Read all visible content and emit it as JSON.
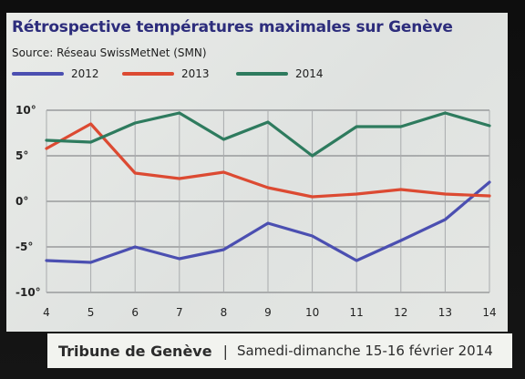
{
  "chart_data": {
    "type": "line",
    "title": "Rétrospective températures maximales sur Genève",
    "subtitle": "Source: Réseau SwissMetNet (SMN)",
    "x": [
      4,
      5,
      6,
      7,
      8,
      9,
      10,
      11,
      12,
      13,
      14
    ],
    "x_tick_labels": [
      "4",
      "5",
      "6",
      "7",
      "8",
      "9",
      "10",
      "11",
      "12",
      "13",
      "14"
    ],
    "series": [
      {
        "name": "2012",
        "color": "#4b4fb1",
        "values": [
          -6.5,
          -6.7,
          -5.0,
          -6.3,
          -5.3,
          -2.4,
          -3.8,
          -6.5,
          -4.3,
          -2.0,
          2.1
        ]
      },
      {
        "name": "2013",
        "color": "#dc4a32",
        "values": [
          5.8,
          8.5,
          3.1,
          2.5,
          3.2,
          1.5,
          0.5,
          0.8,
          1.3,
          0.8,
          0.6
        ]
      },
      {
        "name": "2014",
        "color": "#2e7b5e",
        "values": [
          6.7,
          6.5,
          8.6,
          9.7,
          6.8,
          8.7,
          5.0,
          8.2,
          8.2,
          9.7,
          8.3
        ]
      }
    ],
    "ylim": [
      -10,
      10
    ],
    "y_ticks": [
      10,
      5,
      0,
      -5,
      -10
    ],
    "y_tick_labels": [
      "10°",
      "5°",
      "0°",
      "-5°",
      "-10°"
    ],
    "grid": true,
    "legend_position": "top"
  },
  "footer": {
    "publication": "Tribune de Genève",
    "separator": "|",
    "date": "Samedi-dimanche 15-16 février 2014"
  }
}
